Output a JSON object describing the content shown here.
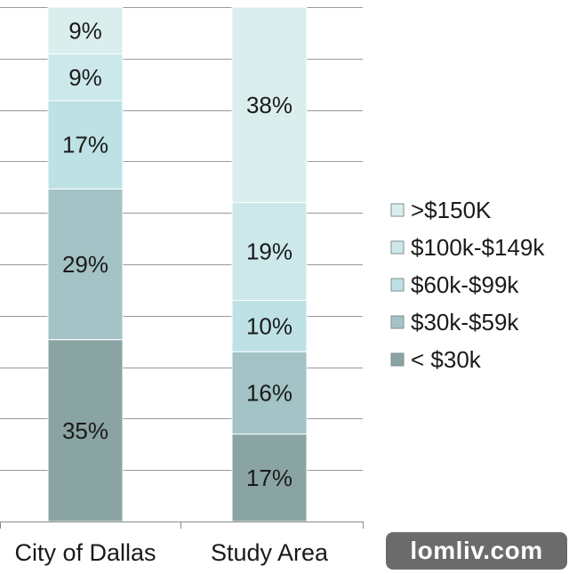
{
  "chart_data": {
    "type": "bar",
    "stacked": true,
    "percent_stacked": true,
    "categories": [
      "City of Dallas",
      "Study Area"
    ],
    "series": [
      {
        "name": "< $30k",
        "values": [
          35,
          17
        ],
        "color": "#8aa3a3"
      },
      {
        "name": "$30k-$59k",
        "values": [
          29,
          16
        ],
        "color": "#a3c3c6"
      },
      {
        "name": "$60k-$99k",
        "values": [
          17,
          10
        ],
        "color": "#bde1e5"
      },
      {
        "name": "$100k-$149k",
        "values": [
          9,
          19
        ],
        "color": "#cce8ea"
      },
      {
        "name": ">$150K",
        "values": [
          9,
          38
        ],
        "color": "#dbeeee"
      }
    ],
    "ylim": [
      0,
      100
    ],
    "grid": true,
    "legend_position": "right",
    "title": "",
    "xlabel": "",
    "ylabel": ""
  },
  "watermark": "lomliv.com"
}
